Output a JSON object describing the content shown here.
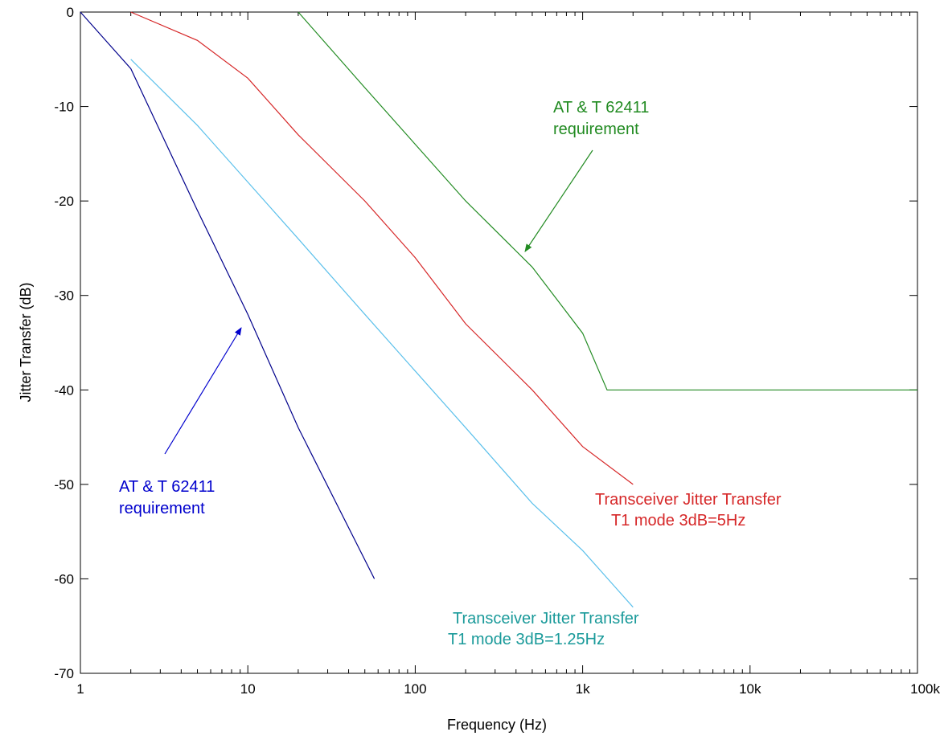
{
  "chart_data": {
    "type": "line",
    "xlabel": "Frequency (Hz)",
    "ylabel": "Jitter Transfer (dB)",
    "x_scale": "log",
    "xlim": [
      1,
      100000
    ],
    "ylim": [
      -70,
      0
    ],
    "x_ticks": [
      {
        "value": 1,
        "label": "1"
      },
      {
        "value": 10,
        "label": "10"
      },
      {
        "value": 100,
        "label": "100"
      },
      {
        "value": 1000,
        "label": "1k"
      },
      {
        "value": 10000,
        "label": "10k"
      },
      {
        "value": 100000,
        "label": "100k"
      }
    ],
    "y_ticks": [
      0,
      -10,
      -20,
      -30,
      -40,
      -50,
      -60,
      -70
    ],
    "grid": false,
    "series": [
      {
        "color": "#00008b",
        "points": [
          [
            1,
            0
          ],
          [
            2,
            -6
          ],
          [
            5,
            -21
          ],
          [
            10,
            -32
          ],
          [
            20,
            -44
          ],
          [
            57,
            -60
          ]
        ]
      },
      {
        "color": "#5bc0eb",
        "points": [
          [
            2,
            -5
          ],
          [
            5,
            -12
          ],
          [
            10,
            -18
          ],
          [
            20,
            -24
          ],
          [
            50,
            -32
          ],
          [
            100,
            -38
          ],
          [
            200,
            -44
          ],
          [
            500,
            -52
          ],
          [
            1000,
            -57
          ],
          [
            2000,
            -63
          ]
        ]
      },
      {
        "color": "#d62728",
        "points": [
          [
            2,
            0
          ],
          [
            5,
            -3
          ],
          [
            10,
            -7
          ],
          [
            20,
            -13
          ],
          [
            50,
            -20
          ],
          [
            100,
            -26
          ],
          [
            200,
            -33
          ],
          [
            500,
            -40
          ],
          [
            1000,
            -46
          ],
          [
            2000,
            -50
          ]
        ]
      },
      {
        "color": "#228b22",
        "points": [
          [
            20,
            0
          ],
          [
            50,
            -8
          ],
          [
            100,
            -14
          ],
          [
            200,
            -20
          ],
          [
            500,
            -27
          ],
          [
            1000,
            -34
          ],
          [
            1400,
            -40
          ],
          [
            100000,
            -40
          ]
        ]
      }
    ],
    "annotations": [
      {
        "lines": [
          "AT & T 62411",
          "requirement"
        ],
        "color": "#228b22",
        "arrow_from": [
          450,
          -10.5
        ],
        "arrow_to": [
          450,
          -25.8
        ]
      },
      {
        "lines": [
          "AT & T 62411",
          "requirement"
        ],
        "color": "#0000cd",
        "arrow_from": [
          3.2,
          -47
        ],
        "arrow_to": [
          14,
          -33.5
        ]
      },
      {
        "lines": [
          "Transceiver Jitter Transfer",
          "T1 mode 3dB=5Hz"
        ],
        "color": "#d62728"
      },
      {
        "lines": [
          "Transceiver Jitter Transfer",
          "T1 mode 3dB=1.25Hz"
        ],
        "color": "#1a9a9a"
      }
    ]
  }
}
